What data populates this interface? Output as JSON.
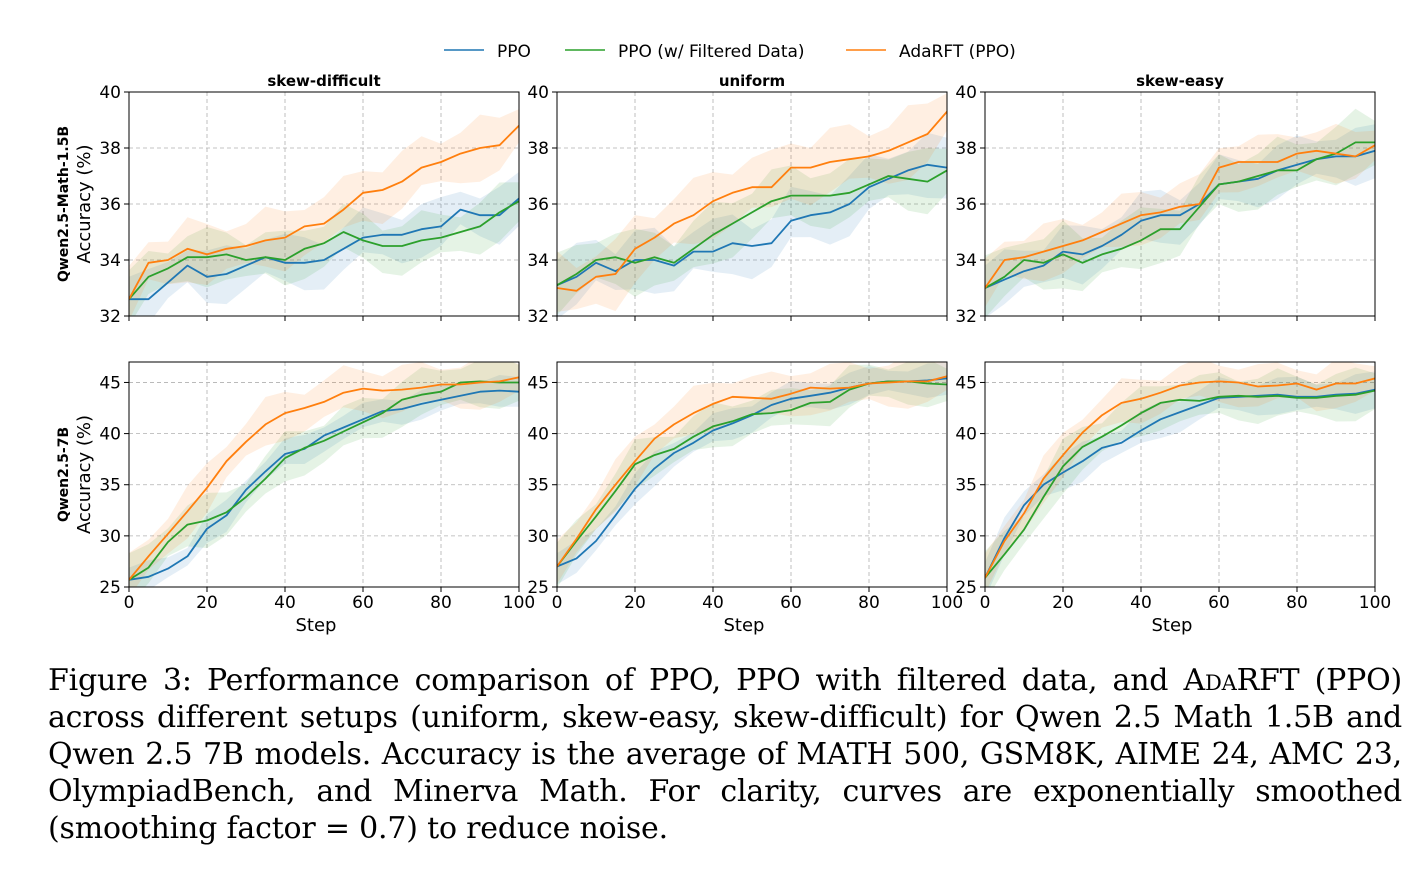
{
  "legend": [
    {
      "name": "PPO",
      "color": "#1f77b4"
    },
    {
      "name": "PPO (w/ Filtered Data)",
      "color": "#2ca02c"
    },
    {
      "name": "AdaRFT (PPO)",
      "color": "#ff7f0e"
    }
  ],
  "x_label": "Step",
  "chart_data": [
    {
      "type": "line",
      "title": "skew-difficult",
      "row_label": "Qwen2.5-Math-1.5B",
      "ylabel": "Accuracy (%)",
      "xlim": [
        0,
        100
      ],
      "ylim": [
        32,
        40
      ],
      "xticks": [],
      "yticks": [
        "32",
        "34",
        "36",
        "38",
        "40"
      ],
      "x": [
        0,
        5,
        10,
        15,
        20,
        25,
        30,
        35,
        40,
        45,
        50,
        55,
        60,
        65,
        70,
        75,
        80,
        85,
        90,
        95,
        100
      ],
      "series": [
        {
          "name": "PPO",
          "values": [
            32.6,
            32.6,
            33.2,
            33.8,
            33.4,
            33.5,
            33.8,
            34.1,
            33.9,
            33.9,
            34.0,
            34.4,
            34.8,
            34.9,
            34.9,
            35.1,
            35.2,
            35.8,
            35.6,
            35.6,
            36.2
          ],
          "band": 0.8
        },
        {
          "name": "PPO (w/ Filtered Data)",
          "values": [
            32.6,
            33.4,
            33.7,
            34.1,
            34.1,
            34.2,
            34.0,
            34.1,
            34.0,
            34.4,
            34.6,
            35.0,
            34.7,
            34.5,
            34.5,
            34.7,
            34.8,
            35.0,
            35.2,
            35.7,
            36.1
          ],
          "band": 0.8
        },
        {
          "name": "AdaRFT (PPO)",
          "values": [
            32.6,
            33.9,
            34.0,
            34.4,
            34.2,
            34.4,
            34.5,
            34.7,
            34.8,
            35.2,
            35.3,
            35.8,
            36.4,
            36.5,
            36.8,
            37.3,
            37.5,
            37.8,
            38.0,
            38.1,
            38.8
          ],
          "band": 0.9
        }
      ]
    },
    {
      "type": "line",
      "title": "uniform",
      "row_label": "",
      "ylabel": "",
      "xlim": [
        0,
        100
      ],
      "ylim": [
        32,
        40
      ],
      "xticks": [],
      "yticks": [
        "32",
        "34",
        "36",
        "38",
        "40"
      ],
      "x": [
        0,
        5,
        10,
        15,
        20,
        25,
        30,
        35,
        40,
        45,
        50,
        55,
        60,
        65,
        70,
        75,
        80,
        85,
        90,
        95,
        100
      ],
      "series": [
        {
          "name": "PPO",
          "values": [
            33.1,
            33.4,
            33.9,
            33.6,
            34.0,
            34.0,
            33.8,
            34.3,
            34.3,
            34.6,
            34.5,
            34.6,
            35.4,
            35.6,
            35.7,
            36.0,
            36.6,
            36.9,
            37.2,
            37.4,
            37.3
          ],
          "band": 0.9
        },
        {
          "name": "PPO (w/ Filtered Data)",
          "values": [
            33.1,
            33.5,
            34.0,
            34.1,
            33.9,
            34.1,
            33.9,
            34.4,
            34.9,
            35.3,
            35.7,
            36.1,
            36.3,
            36.3,
            36.3,
            36.4,
            36.7,
            37.0,
            36.9,
            36.8,
            37.2
          ],
          "band": 0.9
        },
        {
          "name": "AdaRFT (PPO)",
          "values": [
            33.0,
            32.9,
            33.4,
            33.5,
            34.4,
            34.8,
            35.3,
            35.6,
            36.1,
            36.4,
            36.6,
            36.6,
            37.3,
            37.3,
            37.5,
            37.6,
            37.7,
            37.9,
            38.2,
            38.5,
            39.3
          ],
          "band": 1.0
        }
      ]
    },
    {
      "type": "line",
      "title": "skew-easy",
      "row_label": "",
      "ylabel": "",
      "xlim": [
        0,
        100
      ],
      "ylim": [
        32,
        40
      ],
      "xticks": [],
      "yticks": [
        "32",
        "34",
        "36",
        "38",
        "40"
      ],
      "x": [
        0,
        5,
        10,
        15,
        20,
        25,
        30,
        35,
        40,
        45,
        50,
        55,
        60,
        65,
        70,
        75,
        80,
        85,
        90,
        95,
        100
      ],
      "series": [
        {
          "name": "PPO",
          "values": [
            33.0,
            33.3,
            33.6,
            33.8,
            34.3,
            34.2,
            34.5,
            34.9,
            35.4,
            35.6,
            35.6,
            36.0,
            36.7,
            36.8,
            36.9,
            37.2,
            37.4,
            37.6,
            37.7,
            37.7,
            37.9
          ],
          "band": 0.8
        },
        {
          "name": "PPO (w/ Filtered Data)",
          "values": [
            33.0,
            33.4,
            34.0,
            33.9,
            34.2,
            33.9,
            34.2,
            34.4,
            34.7,
            35.1,
            35.1,
            35.9,
            36.7,
            36.8,
            37.0,
            37.2,
            37.2,
            37.6,
            37.8,
            38.2,
            38.2
          ],
          "band": 0.9
        },
        {
          "name": "AdaRFT (PPO)",
          "values": [
            33.0,
            34.0,
            34.1,
            34.3,
            34.5,
            34.7,
            35.0,
            35.3,
            35.6,
            35.7,
            35.9,
            36.0,
            37.3,
            37.5,
            37.5,
            37.5,
            37.8,
            37.9,
            37.8,
            37.7,
            38.1
          ],
          "band": 0.8
        }
      ]
    },
    {
      "type": "line",
      "title": "",
      "row_label": "Qwen2.5-7B",
      "ylabel": "Accuracy (%)",
      "xlim": [
        0,
        100
      ],
      "ylim": [
        25,
        47
      ],
      "xticks": [
        "0",
        "20",
        "40",
        "60",
        "80",
        "100"
      ],
      "yticks": [
        "25",
        "30",
        "35",
        "40",
        "45"
      ],
      "x": [
        0,
        5,
        10,
        15,
        20,
        25,
        30,
        35,
        40,
        45,
        50,
        55,
        60,
        65,
        70,
        75,
        80,
        85,
        90,
        95,
        100
      ],
      "series": [
        {
          "name": "PPO",
          "values": [
            25.7,
            26.0,
            26.8,
            28.0,
            30.7,
            32.0,
            34.5,
            36.3,
            38.0,
            38.5,
            39.8,
            40.6,
            41.4,
            42.2,
            42.4,
            42.9,
            43.3,
            43.7,
            44.1,
            44.2,
            44.1
          ],
          "band": 1.2
        },
        {
          "name": "PPO (w/ Filtered Data)",
          "values": [
            25.7,
            26.9,
            29.4,
            31.1,
            31.5,
            32.3,
            33.8,
            35.6,
            37.6,
            38.6,
            39.3,
            40.2,
            41.1,
            42.0,
            43.3,
            43.8,
            44.1,
            45.0,
            45.1,
            45.0,
            45.0
          ],
          "band": 2.0
        },
        {
          "name": "AdaRFT (PPO)",
          "values": [
            25.7,
            28.0,
            30.2,
            32.4,
            34.7,
            37.3,
            39.2,
            40.9,
            42.0,
            42.5,
            43.1,
            44.0,
            44.4,
            44.2,
            44.3,
            44.5,
            44.8,
            44.8,
            45.0,
            45.1,
            45.5
          ],
          "band": 2.0
        }
      ]
    },
    {
      "type": "line",
      "title": "",
      "row_label": "",
      "ylabel": "",
      "xlim": [
        0,
        100
      ],
      "ylim": [
        25,
        47
      ],
      "xticks": [
        "0",
        "20",
        "40",
        "60",
        "80",
        "100"
      ],
      "yticks": [
        "25",
        "30",
        "35",
        "40",
        "45"
      ],
      "x": [
        0,
        5,
        10,
        15,
        20,
        25,
        30,
        35,
        40,
        45,
        50,
        55,
        60,
        65,
        70,
        75,
        80,
        85,
        90,
        95,
        100
      ],
      "series": [
        {
          "name": "PPO",
          "values": [
            27.0,
            27.8,
            29.5,
            32.0,
            34.6,
            36.6,
            38.1,
            39.1,
            40.3,
            41.0,
            41.8,
            42.8,
            43.4,
            43.7,
            44.0,
            44.5,
            44.9,
            45.1,
            45.1,
            45.2,
            45.4
          ],
          "band": 1.3
        },
        {
          "name": "PPO (w/ Filtered Data)",
          "values": [
            27.0,
            29.5,
            31.9,
            34.4,
            37.0,
            37.9,
            38.5,
            39.7,
            40.7,
            41.2,
            41.9,
            42.0,
            42.3,
            43.0,
            43.1,
            44.3,
            44.9,
            45.1,
            45.1,
            44.9,
            44.8
          ],
          "band": 1.8
        },
        {
          "name": "AdaRFT (PPO)",
          "values": [
            27.0,
            29.7,
            32.6,
            35.0,
            37.3,
            39.5,
            40.9,
            42.0,
            42.9,
            43.6,
            43.5,
            43.4,
            43.9,
            44.5,
            44.4,
            44.5,
            44.9,
            45.0,
            45.1,
            45.1,
            45.6
          ],
          "band": 2.0
        }
      ]
    },
    {
      "type": "line",
      "title": "",
      "row_label": "",
      "ylabel": "",
      "xlim": [
        0,
        100
      ],
      "ylim": [
        25,
        47
      ],
      "xticks": [
        "0",
        "20",
        "40",
        "60",
        "80",
        "100"
      ],
      "yticks": [
        "25",
        "30",
        "35",
        "40",
        "45"
      ],
      "x": [
        0,
        5,
        10,
        15,
        20,
        25,
        30,
        35,
        40,
        45,
        50,
        55,
        60,
        65,
        70,
        75,
        80,
        85,
        90,
        95,
        100
      ],
      "series": [
        {
          "name": "PPO",
          "values": [
            25.9,
            29.8,
            33.0,
            35.0,
            36.2,
            37.3,
            38.6,
            39.1,
            40.3,
            41.4,
            42.1,
            42.8,
            43.5,
            43.6,
            43.7,
            43.8,
            43.6,
            43.6,
            43.8,
            43.9,
            44.3
          ],
          "band": 1.5
        },
        {
          "name": "PPO (w/ Filtered Data)",
          "values": [
            25.9,
            28.2,
            30.6,
            33.8,
            36.8,
            38.7,
            39.7,
            40.8,
            42.0,
            43.0,
            43.3,
            43.2,
            43.6,
            43.7,
            43.6,
            43.7,
            43.5,
            43.5,
            43.7,
            43.8,
            44.2
          ],
          "band": 2.0
        },
        {
          "name": "AdaRFT (PPO)",
          "values": [
            25.9,
            29.5,
            32.2,
            35.6,
            37.9,
            40.1,
            41.8,
            43.0,
            43.4,
            44.0,
            44.7,
            45.0,
            45.1,
            45.0,
            44.6,
            44.7,
            44.9,
            44.3,
            44.9,
            44.9,
            45.4
          ],
          "band": 1.8
        }
      ]
    }
  ],
  "caption": {
    "prefix": "Figure 3: Performance comparison of PPO, PPO with filtered data, and ",
    "method": "AdaRFT",
    "suffix": " (PPO) across different setups (uniform, skew-easy, skew-difficult) for Qwen 2.5 Math 1.5B and Qwen 2.5 7B models. Accuracy is the average of MATH 500, GSM8K, AIME 24, AMC 23, OlympiadBench, and Minerva Math. For clarity, curves are exponentially smoothed (smoothing factor = 0.7) to reduce noise."
  }
}
